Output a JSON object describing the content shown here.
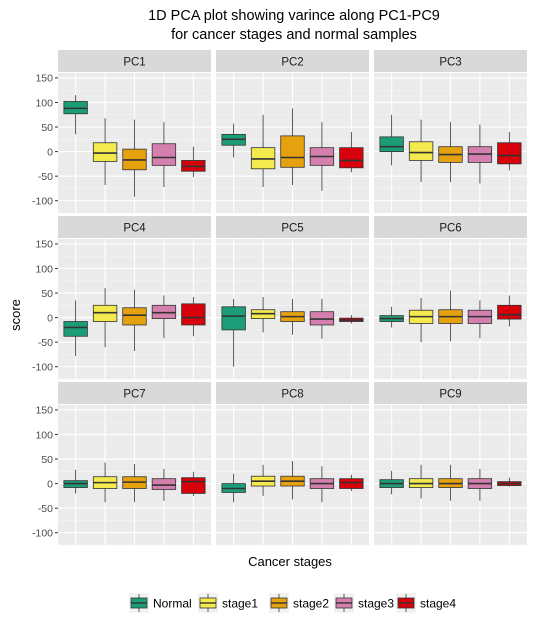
{
  "chart_data": {
    "type": "box",
    "title": "1D PCA plot showing varince along PC1-PC9",
    "subtitle": "for cancer stages and normal samples",
    "xlabel": "Cancer stages",
    "ylabel": "score",
    "ylim": [
      -125,
      160
    ],
    "yticks": [
      150,
      100,
      50,
      0,
      -50,
      -100
    ],
    "grid": true,
    "legend_position": "bottom",
    "categories": [
      "Normal",
      "stage1",
      "stage2",
      "stage3",
      "stage4"
    ],
    "colors": {
      "Normal": "#1b9e77",
      "stage1": "#f4e94e",
      "stage2": "#e6a10f",
      "stage3": "#d47fae",
      "stage4": "#d7000b"
    },
    "panels": [
      {
        "name": "PC1",
        "boxes": [
          {
            "category": "Normal",
            "min": 35,
            "q1": 77,
            "median": 88,
            "q3": 102,
            "max": 115
          },
          {
            "category": "stage1",
            "min": -68,
            "q1": -20,
            "median": -3,
            "q3": 18,
            "max": 68
          },
          {
            "category": "stage2",
            "min": -92,
            "q1": -37,
            "median": -17,
            "q3": 5,
            "max": 65
          },
          {
            "category": "stage3",
            "min": -72,
            "q1": -28,
            "median": -12,
            "q3": 16,
            "max": 60
          },
          {
            "category": "stage4",
            "min": -52,
            "q1": -40,
            "median": -30,
            "q3": -18,
            "max": 10
          }
        ]
      },
      {
        "name": "PC2",
        "boxes": [
          {
            "category": "Normal",
            "min": -12,
            "q1": 13,
            "median": 25,
            "q3": 35,
            "max": 57
          },
          {
            "category": "stage1",
            "min": -72,
            "q1": -35,
            "median": -15,
            "q3": 8,
            "max": 75
          },
          {
            "category": "stage2",
            "min": -68,
            "q1": -32,
            "median": -12,
            "q3": 32,
            "max": 88
          },
          {
            "category": "stage3",
            "min": -80,
            "q1": -28,
            "median": -10,
            "q3": 8,
            "max": 60
          },
          {
            "category": "stage4",
            "min": -42,
            "q1": -33,
            "median": -18,
            "q3": 8,
            "max": 40
          }
        ]
      },
      {
        "name": "PC3",
        "boxes": [
          {
            "category": "Normal",
            "min": -28,
            "q1": 0,
            "median": 10,
            "q3": 30,
            "max": 75
          },
          {
            "category": "stage1",
            "min": -62,
            "q1": -18,
            "median": -2,
            "q3": 20,
            "max": 65
          },
          {
            "category": "stage2",
            "min": -62,
            "q1": -22,
            "median": -6,
            "q3": 10,
            "max": 60
          },
          {
            "category": "stage3",
            "min": -65,
            "q1": -22,
            "median": -5,
            "q3": 10,
            "max": 55
          },
          {
            "category": "stage4",
            "min": -38,
            "q1": -25,
            "median": -8,
            "q3": 18,
            "max": 40
          }
        ]
      },
      {
        "name": "PC4",
        "boxes": [
          {
            "category": "Normal",
            "min": -78,
            "q1": -38,
            "median": -20,
            "q3": -8,
            "max": 35
          },
          {
            "category": "stage1",
            "min": -60,
            "q1": -8,
            "median": 10,
            "q3": 25,
            "max": 60
          },
          {
            "category": "stage2",
            "min": -68,
            "q1": -15,
            "median": 5,
            "q3": 20,
            "max": 57
          },
          {
            "category": "stage3",
            "min": -42,
            "q1": -2,
            "median": 10,
            "q3": 25,
            "max": 45
          },
          {
            "category": "stage4",
            "min": -38,
            "q1": -15,
            "median": 0,
            "q3": 28,
            "max": 42
          }
        ]
      },
      {
        "name": "PC5",
        "boxes": [
          {
            "category": "Normal",
            "min": -100,
            "q1": -25,
            "median": 3,
            "q3": 22,
            "max": 38
          },
          {
            "category": "stage1",
            "min": -30,
            "q1": -2,
            "median": 8,
            "q3": 16,
            "max": 42
          },
          {
            "category": "stage2",
            "min": -35,
            "q1": -8,
            "median": 2,
            "q3": 12,
            "max": 38
          },
          {
            "category": "stage3",
            "min": -43,
            "q1": -15,
            "median": -3,
            "q3": 12,
            "max": 38
          },
          {
            "category": "stage4",
            "min": -12,
            "q1": -8,
            "median": -5,
            "q3": -1,
            "max": 5
          }
        ]
      },
      {
        "name": "PC6",
        "boxes": [
          {
            "category": "Normal",
            "min": -20,
            "q1": -8,
            "median": -2,
            "q3": 4,
            "max": 22
          },
          {
            "category": "stage1",
            "min": -50,
            "q1": -12,
            "median": 2,
            "q3": 15,
            "max": 40
          },
          {
            "category": "stage2",
            "min": -48,
            "q1": -12,
            "median": 2,
            "q3": 16,
            "max": 55
          },
          {
            "category": "stage3",
            "min": -42,
            "q1": -12,
            "median": 2,
            "q3": 15,
            "max": 35
          },
          {
            "category": "stage4",
            "min": -18,
            "q1": -3,
            "median": 6,
            "q3": 25,
            "max": 45
          }
        ]
      },
      {
        "name": "PC7",
        "boxes": [
          {
            "category": "Normal",
            "min": -20,
            "q1": -8,
            "median": 0,
            "q3": 6,
            "max": 28
          },
          {
            "category": "stage1",
            "min": -38,
            "q1": -10,
            "median": 2,
            "q3": 14,
            "max": 43
          },
          {
            "category": "stage2",
            "min": -38,
            "q1": -10,
            "median": 3,
            "q3": 14,
            "max": 40
          },
          {
            "category": "stage3",
            "min": -35,
            "q1": -12,
            "median": -3,
            "q3": 10,
            "max": 30
          },
          {
            "category": "stage4",
            "min": -25,
            "q1": -20,
            "median": 4,
            "q3": 12,
            "max": 24
          }
        ]
      },
      {
        "name": "PC8",
        "boxes": [
          {
            "category": "Normal",
            "min": -38,
            "q1": -18,
            "median": -10,
            "q3": 0,
            "max": 20
          },
          {
            "category": "stage1",
            "min": -25,
            "q1": -5,
            "median": 5,
            "q3": 15,
            "max": 38
          },
          {
            "category": "stage2",
            "min": -32,
            "q1": -5,
            "median": 5,
            "q3": 15,
            "max": 46
          },
          {
            "category": "stage3",
            "min": -38,
            "q1": -10,
            "median": 0,
            "q3": 10,
            "max": 35
          },
          {
            "category": "stage4",
            "min": -15,
            "q1": -10,
            "median": 2,
            "q3": 10,
            "max": 18
          }
        ]
      },
      {
        "name": "PC9",
        "boxes": [
          {
            "category": "Normal",
            "min": -22,
            "q1": -8,
            "median": 0,
            "q3": 8,
            "max": 26
          },
          {
            "category": "stage1",
            "min": -30,
            "q1": -8,
            "median": 0,
            "q3": 10,
            "max": 38
          },
          {
            "category": "stage2",
            "min": -35,
            "q1": -8,
            "median": 0,
            "q3": 10,
            "max": 38
          },
          {
            "category": "stage3",
            "min": -35,
            "q1": -10,
            "median": 0,
            "q3": 10,
            "max": 30
          },
          {
            "category": "stage4",
            "min": -6,
            "q1": -4,
            "median": 0,
            "q3": 4,
            "max": 12
          }
        ]
      }
    ]
  }
}
